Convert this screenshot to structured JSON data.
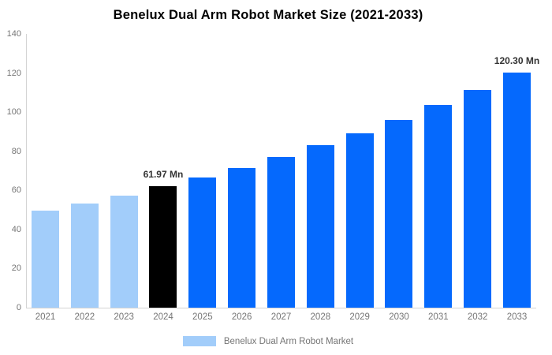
{
  "chart_data": {
    "type": "bar",
    "title": "Benelux Dual Arm Robot Market Size (2021-2033)",
    "categories": [
      "2021",
      "2022",
      "2023",
      "2024",
      "2025",
      "2026",
      "2027",
      "2028",
      "2029",
      "2030",
      "2031",
      "2032",
      "2033"
    ],
    "values": [
      49.5,
      53.3,
      57.4,
      61.97,
      66.5,
      71.6,
      77.0,
      83.0,
      89.3,
      96.0,
      103.5,
      111.4,
      120.3
    ],
    "unit": "Mn",
    "bar_colors": [
      "#a2cdfa",
      "#a2cdfa",
      "#a2cdfa",
      "#000000",
      "#0569fd",
      "#0569fd",
      "#0569fd",
      "#0569fd",
      "#0569fd",
      "#0569fd",
      "#0569fd",
      "#0569fd",
      "#0569fd"
    ],
    "ylim": [
      0,
      140
    ],
    "yticks": [
      0,
      20,
      40,
      60,
      80,
      100,
      120,
      140
    ],
    "grid": false,
    "xlabel": "",
    "ylabel": "",
    "annotations": [
      {
        "category": "2024",
        "text": "61.97 Mn"
      },
      {
        "category": "2033",
        "text": "120.30 Mn"
      }
    ],
    "legend_position": "bottom",
    "legend": [
      {
        "label": "Benelux Dual Arm Robot Market",
        "color": "#a2cdfa"
      }
    ]
  },
  "colors": {
    "historical_bar": "#a2cdfa",
    "base_year_bar": "#000000",
    "forecast_bar": "#0569fd",
    "axis_line": "#d4d4d4",
    "axis_text": "#757575",
    "annotation_text": "#333333",
    "title_text": "#000000",
    "background": "#ffffff"
  }
}
